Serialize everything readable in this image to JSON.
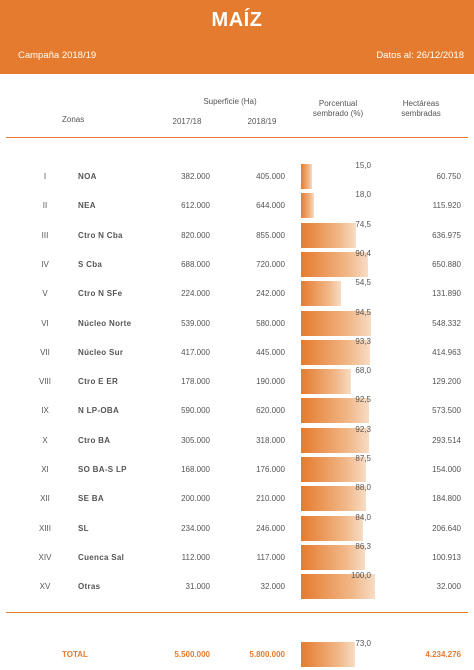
{
  "header": {
    "title": "MAÍZ",
    "campaign": "Campaña 2018/19",
    "date": "Datos al: 26/12/2018"
  },
  "columns": {
    "zones": "Zonas",
    "surface": "Superficie (Ha)",
    "y2017": "2017/18",
    "y2018": "2018/19",
    "percent_l1": "Porcentual",
    "percent_l2": "sembrado (%)",
    "hectares_l1": "Hectáreas",
    "hectares_l2": "sembradas"
  },
  "rows": [
    {
      "roman": "I",
      "zone": "NOA",
      "y2017": "382.000",
      "y2018": "405.000",
      "pct": "15,0",
      "pct_value": 15.0,
      "hec": "60.750"
    },
    {
      "roman": "II",
      "zone": "NEA",
      "y2017": "612.000",
      "y2018": "644.000",
      "pct": "18,0",
      "pct_value": 18.0,
      "hec": "115.920"
    },
    {
      "roman": "III",
      "zone": "Ctro N Cba",
      "y2017": "820.000",
      "y2018": "855.000",
      "pct": "74,5",
      "pct_value": 74.5,
      "hec": "636.975"
    },
    {
      "roman": "IV",
      "zone": "S Cba",
      "y2017": "688.000",
      "y2018": "720.000",
      "pct": "90,4",
      "pct_value": 90.4,
      "hec": "650.880"
    },
    {
      "roman": "V",
      "zone": "Ctro N SFe",
      "y2017": "224.000",
      "y2018": "242.000",
      "pct": "54,5",
      "pct_value": 54.5,
      "hec": "131.890"
    },
    {
      "roman": "VI",
      "zone": "Núcleo Norte",
      "y2017": "539.000",
      "y2018": "580.000",
      "pct": "94,5",
      "pct_value": 94.5,
      "hec": "548.332"
    },
    {
      "roman": "VII",
      "zone": "Núcleo Sur",
      "y2017": "417.000",
      "y2018": "445.000",
      "pct": "93,3",
      "pct_value": 93.3,
      "hec": "414.963"
    },
    {
      "roman": "VIII",
      "zone": "Ctro E ER",
      "y2017": "178.000",
      "y2018": "190.000",
      "pct": "68,0",
      "pct_value": 68.0,
      "hec": "129.200"
    },
    {
      "roman": "IX",
      "zone": "N LP-OBA",
      "y2017": "590.000",
      "y2018": "620.000",
      "pct": "92,5",
      "pct_value": 92.5,
      "hec": "573.500"
    },
    {
      "roman": "X",
      "zone": "Ctro BA",
      "y2017": "305.000",
      "y2018": "318.000",
      "pct": "92,3",
      "pct_value": 92.3,
      "hec": "293.514"
    },
    {
      "roman": "XI",
      "zone": "SO BA-S LP",
      "y2017": "168.000",
      "y2018": "176.000",
      "pct": "87,5",
      "pct_value": 87.5,
      "hec": "154.000"
    },
    {
      "roman": "XII",
      "zone": "SE BA",
      "y2017": "200.000",
      "y2018": "210.000",
      "pct": "88,0",
      "pct_value": 88.0,
      "hec": "184.800"
    },
    {
      "roman": "XIII",
      "zone": "SL",
      "y2017": "234.000",
      "y2018": "246.000",
      "pct": "84,0",
      "pct_value": 84.0,
      "hec": "206.640"
    },
    {
      "roman": "XIV",
      "zone": "Cuenca Sal",
      "y2017": "112.000",
      "y2018": "117.000",
      "pct": "86,3",
      "pct_value": 86.3,
      "hec": "100.913"
    },
    {
      "roman": "XV",
      "zone": "Otras",
      "y2017": "31.000",
      "y2018": "32.000",
      "pct": "100,0",
      "pct_value": 100.0,
      "hec": "32.000"
    }
  ],
  "total": {
    "label": "TOTAL",
    "y2017": "5.500.000",
    "y2018": "5.800.000",
    "pct": "73,0",
    "pct_value": 73.0,
    "hec": "4.234.276"
  },
  "colors": {
    "accent": "#e57b2e"
  }
}
